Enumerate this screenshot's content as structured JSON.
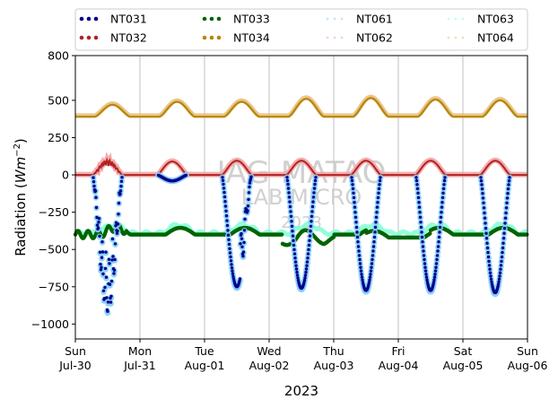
{
  "chart_data": {
    "type": "scatter",
    "xlabel": "2023",
    "ylabel_main": "Radiation (",
    "ylabel_unit": "Wm",
    "ylabel_exp": "−2",
    "ylabel_close": ")",
    "ylim": [
      -1100,
      800
    ],
    "yticks": [
      800,
      500,
      250,
      0,
      -250,
      -500,
      -750,
      -1000
    ],
    "ytick_labels": [
      "800",
      "500",
      "250",
      "0",
      "−250",
      "−500",
      "−750",
      "−1000"
    ],
    "xlim": [
      0,
      7
    ],
    "xticks": [
      0,
      1,
      2,
      3,
      4,
      5,
      6,
      7
    ],
    "xtick_day": [
      "Sun",
      "Mon",
      "Tue",
      "Wed",
      "Thu",
      "Fri",
      "Sat",
      "Sun"
    ],
    "xtick_date": [
      "Jul-30",
      "Jul-31",
      "Aug-01",
      "Aug-02",
      "Aug-03",
      "Aug-04",
      "Aug-05",
      "Aug-06"
    ],
    "grid": "vertical",
    "legend_position": "top-outside",
    "watermark": [
      "IAG-MATAO",
      "LAB MICRO",
      "2023"
    ],
    "series": [
      {
        "name": "NT031",
        "color": "#00008b",
        "baseline": 0,
        "min_day": [
          -920,
          -50,
          -750,
          -760,
          -775,
          -775,
          -790
        ],
        "description_level": "shortwave-up"
      },
      {
        "name": "NT032",
        "color": "#b22222",
        "baseline": 0,
        "max_day": [
          100,
          90,
          95,
          95,
          95,
          95,
          95
        ]
      },
      {
        "name": "NT033",
        "color": "#006400",
        "level": -385
      },
      {
        "name": "NT034",
        "color": "#b8860b",
        "base": 390,
        "peak": [
          470,
          490,
          490,
          510,
          515,
          505,
          500
        ]
      },
      {
        "name": "NT061",
        "color": "#87cefa",
        "baseline": 0
      },
      {
        "name": "NT062",
        "color": "#f4a3a3",
        "baseline": 0
      },
      {
        "name": "NT063",
        "color": "#7fffd4",
        "level": -370
      },
      {
        "name": "NT064",
        "color": "#e8c07a",
        "base": 400
      }
    ]
  }
}
